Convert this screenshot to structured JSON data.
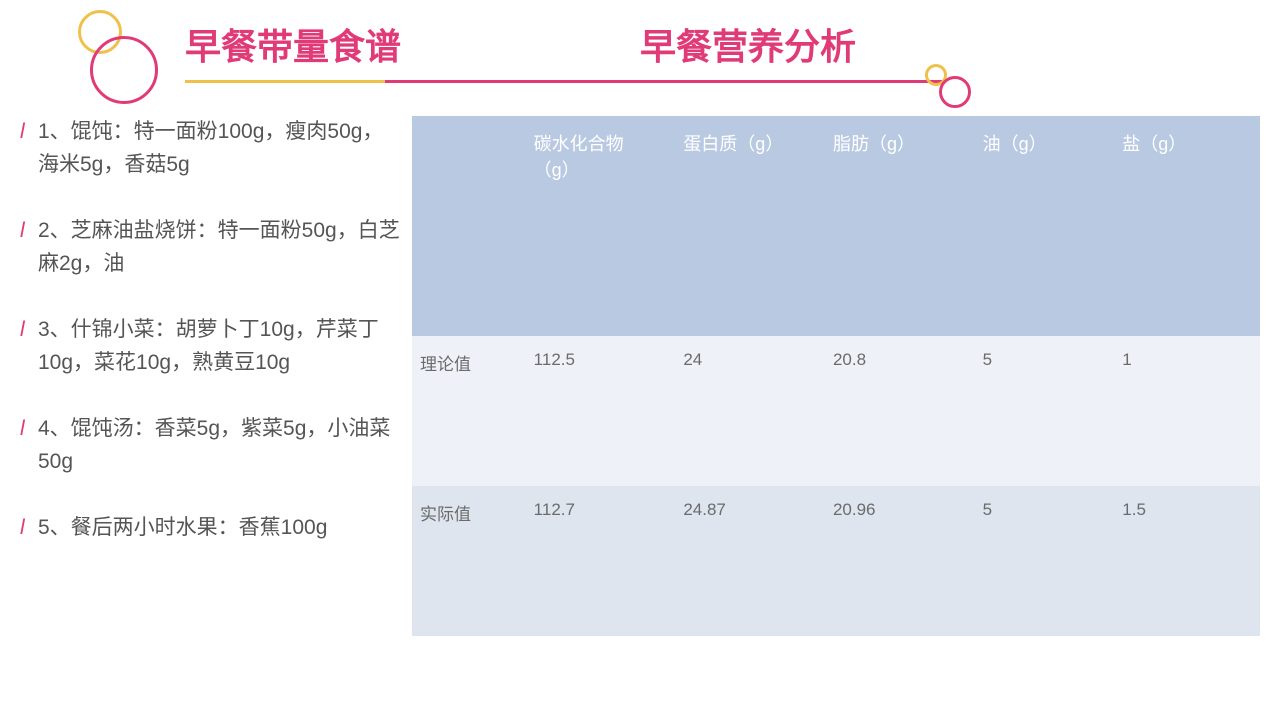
{
  "colors": {
    "pink": "#e03a77",
    "yellow": "#efc04a",
    "text_gray": "#555555",
    "table_header_bg": "#b9c9e2",
    "table_header_text": "#ffffff",
    "table_row1_bg": "#eef1f7",
    "table_row2_bg": "#dfe5ef",
    "table_text": "#6b6b6b"
  },
  "titles": {
    "left": "早餐带量食谱",
    "right": "早餐营养分析"
  },
  "bullet_char": "l",
  "recipes": [
    "1、馄饨：特一面粉100g，瘦肉50g，海米5g，香菇5g",
    "2、芝麻油盐烧饼：特一面粉50g，白芝麻2g，油",
    "3、什锦小菜：胡萝卜丁10g，芹菜丁10g，菜花10g，熟黄豆10g",
    "4、馄饨汤：香菜5g，紫菜5g，小油菜50g",
    "5、餐后两小时水果：香蕉100g"
  ],
  "table": {
    "columns": [
      "",
      "碳水化合物（g）",
      "蛋白质（g）",
      "脂肪（g）",
      "油（g）",
      "盐（g）"
    ],
    "rows": [
      {
        "label": "理论值",
        "values": [
          "112.5",
          "24",
          "20.8",
          "5",
          "1"
        ]
      },
      {
        "label": "实际值",
        "values": [
          "112.7",
          "24.87",
          "20.96",
          "5",
          "1.5"
        ]
      }
    ],
    "col_widths": [
      "110px",
      "150px",
      "150px",
      "150px",
      "140px",
      "150px"
    ]
  }
}
